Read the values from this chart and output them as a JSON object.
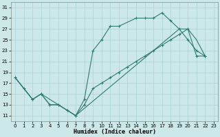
{
  "xlabel": "Humidex (Indice chaleur)",
  "xlim": [
    -0.5,
    23.5
  ],
  "ylim": [
    10,
    32
  ],
  "yticks": [
    11,
    13,
    15,
    17,
    19,
    21,
    23,
    25,
    27,
    29,
    31
  ],
  "xticks": [
    0,
    1,
    2,
    3,
    4,
    5,
    6,
    7,
    8,
    9,
    10,
    11,
    12,
    13,
    14,
    15,
    16,
    17,
    18,
    19,
    20,
    21,
    22,
    23
  ],
  "bg_color": "#cde8e8",
  "grid_color": "#b0d4d4",
  "line_color": "#2d7a6e",
  "line1_x": [
    0,
    1,
    2,
    3,
    4,
    5,
    6,
    7,
    8,
    9,
    10,
    11,
    12,
    14,
    15,
    16,
    17,
    18,
    19,
    20,
    21,
    22
  ],
  "line1_y": [
    18,
    16,
    14,
    15,
    13,
    13,
    12,
    11,
    14,
    23,
    25,
    27.5,
    27.5,
    29,
    29,
    29,
    30,
    28.5,
    27,
    25,
    23,
    22
  ],
  "line2_x": [
    0,
    2,
    3,
    4,
    5,
    6,
    7,
    8,
    9,
    10,
    11,
    12,
    13,
    14,
    15,
    16,
    17,
    18,
    19,
    20,
    21,
    22
  ],
  "line2_y": [
    18,
    14,
    15,
    13,
    13,
    12,
    11,
    13,
    16,
    17,
    18,
    19,
    20,
    21,
    22,
    23,
    24,
    25,
    26,
    27,
    22,
    22
  ],
  "line3_x": [
    0,
    1,
    2,
    3,
    7,
    19,
    20,
    21,
    22
  ],
  "line3_y": [
    18,
    16,
    14,
    15,
    11,
    27,
    27,
    25,
    22
  ]
}
